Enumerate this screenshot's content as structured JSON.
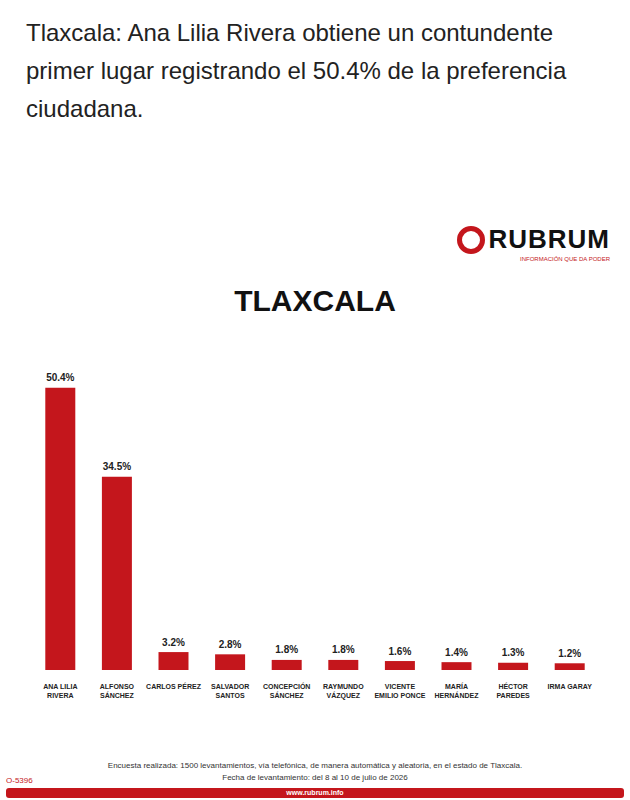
{
  "header": {
    "headline": "Tlaxcala: Ana Lilia Rivera obtiene un contundente primer lugar registrando el 50.4% de la preferencia ciudadana."
  },
  "logo": {
    "name": "RUBRUM",
    "tagline": "INFORMACIÓN QUE DA PODER"
  },
  "chart_data": {
    "type": "bar",
    "title": "TLAXCALA",
    "categories": [
      "ANA LILIA RIVERA",
      "ALFONSO SÁNCHEZ",
      "CARLOS PÉREZ",
      "SALVADOR SANTOS",
      "CONCEPCIÓN SÁNCHEZ",
      "RAYMUNDO VÁZQUEZ",
      "VICENTE EMILIO PONCE",
      "MARÍA HERNÁNDEZ",
      "HÉCTOR PAREDES",
      "IRMA GARAY"
    ],
    "values": [
      50.4,
      34.5,
      3.2,
      2.8,
      1.8,
      1.8,
      1.6,
      1.4,
      1.3,
      1.2
    ],
    "value_labels": [
      "50.4%",
      "34.5%",
      "3.2%",
      "2.8%",
      "1.8%",
      "1.8%",
      "1.6%",
      "1.4%",
      "1.3%",
      "1.2%"
    ],
    "color": "#c4161c",
    "ylim": [
      0,
      55
    ],
    "grid": false,
    "data_labels": true,
    "tick_labels": "x"
  },
  "footer": {
    "note": "Encuesta realizada: 1500 levantamientos, vía telefónica, de manera automática y aleatoria, en el estado de Tlaxcala.",
    "date": "Fecha de levantamiento: del 8 al 10 de julio de 2026",
    "code": "O-5396",
    "url": "www.rubrum.info"
  }
}
